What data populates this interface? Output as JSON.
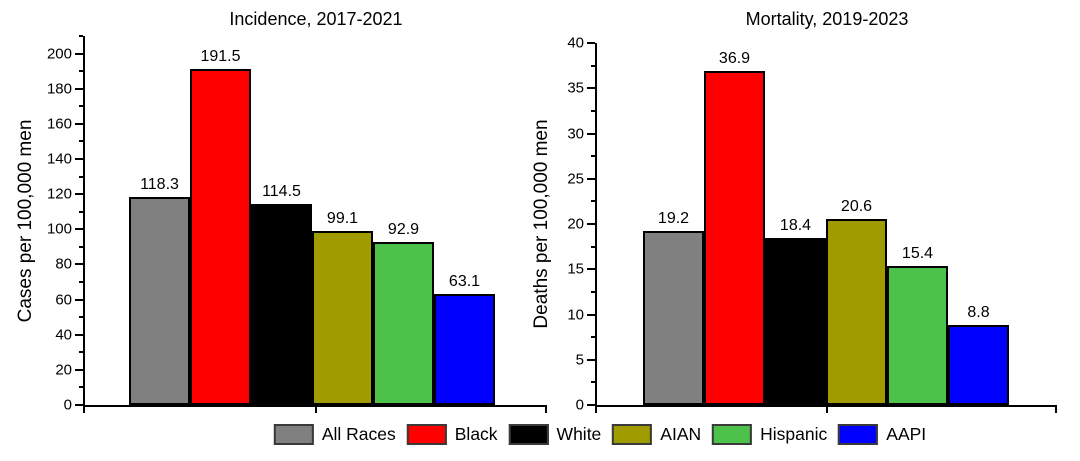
{
  "figure": {
    "background": "#ffffff",
    "axis_color": "#000000",
    "text_color": "#000000"
  },
  "legend": {
    "position": "bottom-center",
    "swatch_border_color": "#3a3a3a",
    "items": [
      {
        "label": "All Races",
        "color": "#808080"
      },
      {
        "label": "Black",
        "color": "#ff0000"
      },
      {
        "label": "White",
        "color": "#000000"
      },
      {
        "label": "AIAN",
        "color": "#a09c00"
      },
      {
        "label": "Hispanic",
        "color": "#4cc24a"
      },
      {
        "label": "AAPI",
        "color": "#0000ff"
      }
    ]
  },
  "chart_data": [
    {
      "type": "bar",
      "title": "Incidence, 2017-2021",
      "xlabel": "",
      "ylabel": "Cases per 100,000 men",
      "categories": [
        "All Races",
        "Black",
        "White",
        "AIAN",
        "Hispanic",
        "AAPI"
      ],
      "values": [
        118.3,
        191.5,
        114.5,
        99.1,
        92.9,
        63.1
      ],
      "value_labels": [
        "118.3",
        "191.5",
        "114.5",
        "99.1",
        "92.9",
        "63.1"
      ],
      "bar_colors": [
        "#808080",
        "#ff0000",
        "#000000",
        "#a09c00",
        "#4cc24a",
        "#0000ff"
      ],
      "ylim": [
        0,
        210
      ],
      "y_tick_label_max": 200,
      "y_major_step": 20,
      "y_minor_step": 10,
      "grid": false,
      "legend_position": "bottom"
    },
    {
      "type": "bar",
      "title": "Mortality, 2019-2023",
      "xlabel": "",
      "ylabel": "Deaths per 100,000 men",
      "categories": [
        "All Races",
        "Black",
        "White",
        "AIAN",
        "Hispanic",
        "AAPI"
      ],
      "values": [
        19.2,
        36.9,
        18.4,
        20.6,
        15.4,
        8.8
      ],
      "value_labels": [
        "19.2",
        "36.9",
        "18.4",
        "20.6",
        "15.4",
        "8.8"
      ],
      "bar_colors": [
        "#808080",
        "#ff0000",
        "#000000",
        "#a09c00",
        "#4cc24a",
        "#0000ff"
      ],
      "ylim": [
        0,
        40
      ],
      "y_tick_label_max": 40,
      "y_major_step": 5,
      "y_minor_step": 2.5,
      "grid": false,
      "legend_position": "bottom"
    }
  ]
}
